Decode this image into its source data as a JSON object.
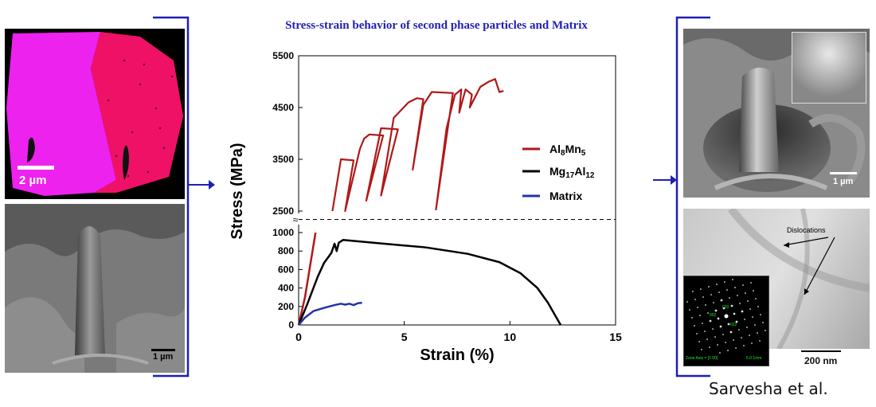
{
  "figure": {
    "title": "Stress-strain  behavior  of second phase particles  and  Matrix",
    "credit": "Sarvesha et al."
  },
  "left_panels": {
    "ebsd_scale": "2 µm",
    "sem_scale": "1 µm"
  },
  "right_panels": {
    "sem_scale": "1 µm",
    "tem_annotation": "Dislocations",
    "tem_scale": "200 nm",
    "diffraction_zone_axis": "Zone Axis = [1 00]",
    "diffraction_scale": "5.0 1/nm",
    "diffraction_spot_labels": [
      "020",
      "002",
      "022"
    ]
  },
  "colors": {
    "al8mn5": "#b01818",
    "mg17al12": "#000000",
    "matrix": "#2233aa",
    "title": "#1f1fb4",
    "arrow": "#1f1fb4",
    "ebsd_magenta": "#ee22ee",
    "ebsd_red": "#ee1166"
  },
  "chart_data": {
    "type": "line",
    "xlabel": "Strain (%)",
    "ylabel": "Stress (MPa)",
    "xlim": [
      0,
      15
    ],
    "x_ticks": [
      0,
      5,
      10,
      15
    ],
    "y_break": true,
    "lower_ylim": [
      0,
      1000
    ],
    "lower_ticks": [
      0,
      200,
      400,
      600,
      800,
      1000
    ],
    "upper_ylim": [
      2500,
      5500
    ],
    "upper_ticks": [
      2500,
      3500,
      4500,
      5500
    ],
    "grid": false,
    "legend_position": "right",
    "legend": [
      {
        "base": "Al",
        "sub1": "8",
        "mid": "Mn",
        "sub2": "5"
      },
      {
        "base": "Mg",
        "sub1": "17",
        "mid": "Al",
        "sub2": "12"
      },
      {
        "base": "Matrix",
        "sub1": "",
        "mid": "",
        "sub2": ""
      }
    ],
    "series": [
      {
        "key": "al8mn5",
        "lower": [
          [
            0,
            0
          ],
          [
            0.3,
            300
          ],
          [
            0.55,
            650
          ],
          [
            0.8,
            1000
          ]
        ],
        "upper": [
          [
            1.6,
            2500
          ],
          [
            2.0,
            3500
          ],
          [
            2.6,
            3480
          ],
          [
            2.2,
            2500
          ],
          [
            2.9,
            3700
          ],
          [
            3.1,
            3900
          ],
          [
            3.35,
            3980
          ],
          [
            4.0,
            3960
          ],
          [
            3.2,
            2700
          ],
          [
            3.9,
            4100
          ],
          [
            4.7,
            4080
          ],
          [
            3.9,
            2800
          ],
          [
            4.5,
            4300
          ],
          [
            5.2,
            4600
          ],
          [
            5.6,
            4680
          ],
          [
            5.9,
            4660
          ],
          [
            5.4,
            3300
          ],
          [
            5.9,
            4550
          ],
          [
            6.3,
            4800
          ],
          [
            7.3,
            4780
          ],
          [
            6.5,
            2530
          ],
          [
            7.0,
            4100
          ],
          [
            7.4,
            4750
          ],
          [
            7.7,
            4850
          ],
          [
            7.6,
            4400
          ],
          [
            7.9,
            4850
          ],
          [
            8.2,
            4750
          ],
          [
            8.1,
            4500
          ],
          [
            8.6,
            4900
          ],
          [
            9.0,
            5000
          ],
          [
            9.3,
            5050
          ],
          [
            9.5,
            4800
          ],
          [
            9.7,
            4820
          ]
        ]
      },
      {
        "key": "mg17al12",
        "lower": [
          [
            0,
            0
          ],
          [
            0.4,
            220
          ],
          [
            0.9,
            520
          ],
          [
            1.2,
            670
          ],
          [
            1.55,
            780
          ],
          [
            1.7,
            880
          ],
          [
            1.8,
            800
          ],
          [
            1.9,
            890
          ],
          [
            2.1,
            920
          ],
          [
            4.0,
            880
          ],
          [
            6.0,
            840
          ],
          [
            8.0,
            770
          ],
          [
            9.5,
            680
          ],
          [
            10.5,
            560
          ],
          [
            11.3,
            400
          ],
          [
            11.8,
            240
          ],
          [
            12.1,
            120
          ],
          [
            12.4,
            0
          ]
        ]
      },
      {
        "key": "matrix",
        "lower": [
          [
            0,
            0
          ],
          [
            0.3,
            80
          ],
          [
            0.7,
            150
          ],
          [
            1.2,
            185
          ],
          [
            1.7,
            215
          ],
          [
            2.0,
            230
          ],
          [
            2.2,
            220
          ],
          [
            2.4,
            230
          ],
          [
            2.6,
            215
          ],
          [
            2.8,
            235
          ],
          [
            3.0,
            240
          ]
        ]
      }
    ]
  }
}
